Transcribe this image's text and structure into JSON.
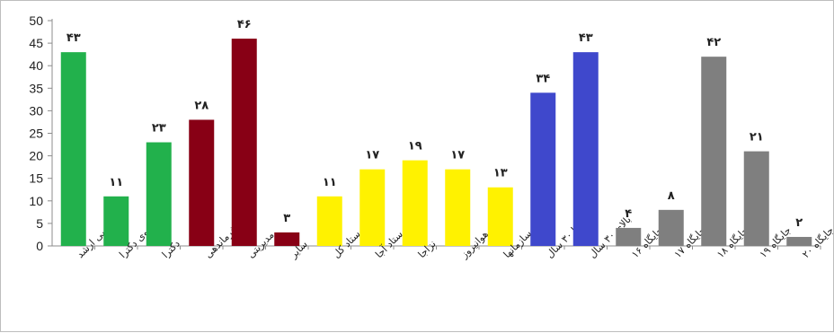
{
  "chart_data": {
    "type": "bar",
    "title": "",
    "xlabel": "",
    "ylabel": "",
    "ylim": [
      0,
      50
    ],
    "yticks": [
      0,
      5,
      10,
      15,
      20,
      25,
      30,
      35,
      40,
      45,
      50
    ],
    "grid": false,
    "legend": "none",
    "categories": [
      "کارشناسی ارشد",
      "دانشجوی دکترا",
      "دکترا",
      "فرماندهی",
      "مدیریتی",
      "سایر",
      "ستاد کل",
      "ستاد آجا",
      "نزاجا",
      "هوانیروز",
      "سایر سازمانها",
      "از ۲۰ تا ۳۰ سال",
      "بالای ۳۰ سال",
      "جایگاه ۱۶",
      "جایگاه ۱۷",
      "جایگاه ۱۸",
      "جایگاه ۱۹",
      "جایگاه ۲۰"
    ],
    "values": [
      43,
      11,
      23,
      28,
      46,
      3,
      11,
      17,
      19,
      17,
      13,
      34,
      43,
      4,
      8,
      42,
      21,
      2
    ],
    "value_labels": [
      "۴۳",
      "۱۱",
      "۲۳",
      "۲۸",
      "۴۶",
      "۳",
      "۱۱",
      "۱۷",
      "۱۹",
      "۱۷",
      "۱۳",
      "۳۴",
      "۴۳",
      "۴",
      "۸",
      "۴۲",
      "۲۱",
      "۲"
    ],
    "colors": [
      "#22b14c",
      "#22b14c",
      "#22b14c",
      "#880015",
      "#880015",
      "#880015",
      "#fff200",
      "#fff200",
      "#fff200",
      "#fff200",
      "#fff200",
      "#3f48cc",
      "#3f48cc",
      "#7f7f7f",
      "#7f7f7f",
      "#7f7f7f",
      "#7f7f7f",
      "#7f7f7f"
    ]
  }
}
